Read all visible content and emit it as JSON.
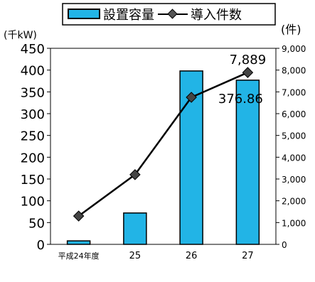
{
  "chart_data": {
    "type": "bar",
    "categories": [
      "平成24年度",
      "25",
      "26",
      "27"
    ],
    "series": [
      {
        "name": "設置容量",
        "kind": "bar",
        "axis": "left",
        "values": [
          8,
          72,
          398,
          376.86
        ],
        "color": "#22b4e6"
      },
      {
        "name": "導入件数",
        "kind": "line",
        "axis": "right",
        "values": [
          1300,
          3200,
          6750,
          7889
        ],
        "color": "#000000"
      }
    ],
    "ylabel_left": "(千kW)",
    "ylabel_right": "(件)",
    "ylim_left": [
      0,
      450
    ],
    "yticks_left": [
      "0",
      "50",
      "100",
      "150",
      "200",
      "250",
      "300",
      "350",
      "400",
      "450"
    ],
    "ylim_right": [
      0,
      9000
    ],
    "yticks_right": [
      "0",
      "1,000",
      "2,000",
      "3,000",
      "4,000",
      "5,000",
      "6,000",
      "7,000",
      "8,000",
      "9,000"
    ],
    "annotations": [
      {
        "text": "7,889",
        "series": "導入件数",
        "category": "27"
      },
      {
        "text": "376.86",
        "series": "設置容量",
        "category": "27"
      }
    ],
    "legend_position": "top",
    "grid": false
  }
}
